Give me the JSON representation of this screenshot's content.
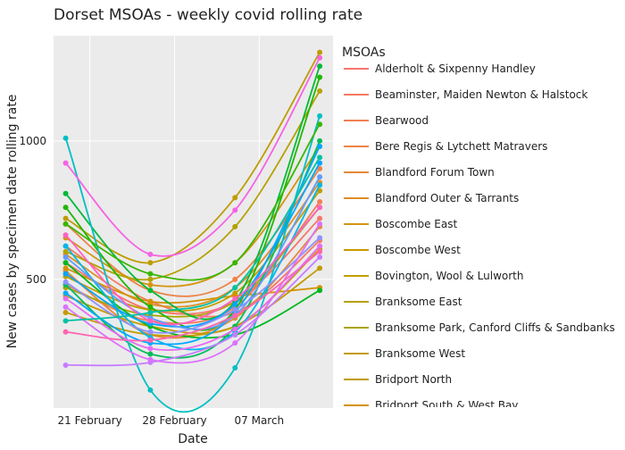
{
  "chart_data": {
    "type": "line",
    "title": "Dorset MSOAs - weekly covid rolling rate",
    "x_label": "Date",
    "y_label": "New cases by specimen date rolling rate",
    "legend_title": "MSOAs",
    "legend_position": "right",
    "grid": true,
    "x": [
      19,
      26,
      33,
      40
    ],
    "xlim": [
      18,
      41.1
    ],
    "xticks": [
      {
        "value": 21,
        "label": "21 February"
      },
      {
        "value": 28,
        "label": "28 February"
      },
      {
        "value": 35,
        "label": "07 March"
      }
    ],
    "ylim": [
      35,
      1380
    ],
    "yticks": [
      500,
      1000
    ],
    "series": [
      {
        "name": "Alderholt & Sixpenny Handley",
        "color": "#F8766D",
        "values": [
          560,
          390,
          420,
          720
        ]
      },
      {
        "name": "Beaminster, Maiden Newton & Halstock",
        "color": "#F57B62",
        "values": [
          620,
          420,
          380,
          640
        ]
      },
      {
        "name": "Bearwood",
        "color": "#F17F55",
        "values": [
          480,
          350,
          400,
          780
        ]
      },
      {
        "name": "Bere Regis & Lytchett Matravers",
        "color": "#EC8347",
        "values": [
          700,
          460,
          500,
          900
        ]
      },
      {
        "name": "Blandford Forum Town",
        "color": "#E58A36",
        "values": [
          530,
          300,
          360,
          690
        ]
      },
      {
        "name": "Blandford Outer & Tarrants",
        "color": "#DD8F25",
        "values": [
          590,
          410,
          470,
          850
        ]
      },
      {
        "name": "Boscombe East",
        "color": "#D49411",
        "values": [
          650,
          480,
          560,
          980
        ]
      },
      {
        "name": "Boscombe West",
        "color": "#CA9A00",
        "values": [
          440,
          330,
          330,
          610
        ]
      },
      {
        "name": "Bovington, Wool & Lulworth",
        "color": "#C09E00",
        "values": [
          510,
          390,
          450,
          820
        ]
      },
      {
        "name": "Branksome East",
        "color": "#B5A100",
        "values": [
          600,
          500,
          690,
          1180
        ]
      },
      {
        "name": "Branksome Park, Canford Cliffs & Sandbanks",
        "color": "#A9A500",
        "values": [
          470,
          370,
          420,
          760
        ]
      },
      {
        "name": "Branksome West",
        "color": "#C49A00",
        "values": [
          380,
          300,
          330,
          540
        ]
      },
      {
        "name": "Bridport North",
        "color": "#BD9C00",
        "values": [
          720,
          560,
          795,
          1320
        ]
      },
      {
        "name": "Bridport South & West Bay",
        "color": "#D39200",
        "values": [
          540,
          420,
          440,
          470
        ]
      },
      {
        "color": "#00BA38",
        "values": [
          810,
          460,
          420,
          1270
        ]
      },
      {
        "color": "#1FB700",
        "values": [
          760,
          400,
          390,
          1230
        ]
      },
      {
        "color": "#00B81F",
        "values": [
          560,
          330,
          300,
          460
        ]
      },
      {
        "color": "#00BD5C",
        "values": [
          480,
          230,
          330,
          1000
        ]
      },
      {
        "color": "#00BFC4",
        "values": [
          1010,
          100,
          180,
          1090
        ]
      },
      {
        "color": "#00B6EB",
        "values": [
          620,
          290,
          310,
          840
        ]
      },
      {
        "color": "#00A9FF",
        "values": [
          450,
          270,
          380,
          980
        ]
      },
      {
        "color": "#06A4FF",
        "values": [
          520,
          340,
          410,
          920
        ]
      },
      {
        "color": "#619CFF",
        "values": [
          580,
          360,
          370,
          870
        ]
      },
      {
        "color": "#8F91FF",
        "values": [
          490,
          310,
          390,
          650
        ]
      },
      {
        "color": "#C77CFF",
        "values": [
          190,
          200,
          300,
          580
        ]
      },
      {
        "color": "#DB72FB",
        "values": [
          400,
          210,
          270,
          700
        ]
      },
      {
        "color": "#F564E3",
        "values": [
          920,
          590,
          750,
          1300
        ]
      },
      {
        "color": "#FF61C3",
        "values": [
          660,
          350,
          430,
          760
        ]
      },
      {
        "color": "#FF64B0",
        "values": [
          310,
          280,
          370,
          600
        ]
      },
      {
        "color": "#E76BF3",
        "values": [
          430,
          250,
          320,
          620
        ]
      },
      {
        "color": "#00C1A3",
        "values": [
          350,
          380,
          470,
          940
        ]
      },
      {
        "color": "#39B600",
        "values": [
          700,
          520,
          560,
          1060
        ]
      }
    ]
  }
}
